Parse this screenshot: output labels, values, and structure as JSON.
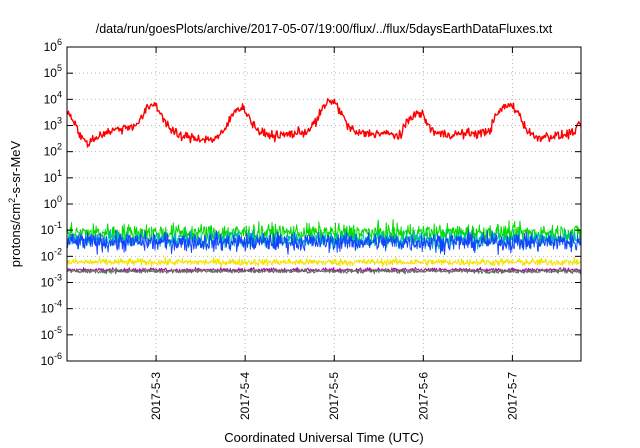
{
  "chart_data": {
    "type": "line",
    "title": "/data/run/goesPlots/archive/2017-05-07/19:00/flux/../flux/5daysEarthDataFluxes.txt",
    "xlabel": "Coordinated Universal Time (UTC)",
    "ylabel": "protons/cm²-s-sr-MeV",
    "y_scale": "log",
    "ylim": [
      1e-06,
      1000000.0
    ],
    "y_tick_exponents": [
      "-6",
      "-5",
      "-4",
      "-3",
      "-2",
      "-1",
      "0",
      "1",
      "2",
      "3",
      "4",
      "5",
      "6"
    ],
    "y_tick_base": "10",
    "x_range_days": [
      0,
      5.77
    ],
    "x_ticks": [
      {
        "day": 1,
        "label": "2017-5-3"
      },
      {
        "day": 2,
        "label": "2017-5-4"
      },
      {
        "day": 3,
        "label": "2017-5-5"
      },
      {
        "day": 4,
        "label": "2017-5-6"
      },
      {
        "day": 5,
        "label": "2017-5-7"
      }
    ],
    "grid": true,
    "series": [
      {
        "color": "#ff0000",
        "points": [
          [
            0.0,
            4000
          ],
          [
            0.08,
            1500
          ],
          [
            0.15,
            400
          ],
          [
            0.22,
            200
          ],
          [
            0.3,
            300
          ],
          [
            0.4,
            500
          ],
          [
            0.55,
            700
          ],
          [
            0.7,
            900
          ],
          [
            0.8,
            1200
          ],
          [
            0.88,
            3500
          ],
          [
            0.95,
            6500
          ],
          [
            1.0,
            6000
          ],
          [
            1.05,
            3000
          ],
          [
            1.15,
            800
          ],
          [
            1.25,
            400
          ],
          [
            1.4,
            350
          ],
          [
            1.55,
            300
          ],
          [
            1.65,
            300
          ],
          [
            1.75,
            500
          ],
          [
            1.82,
            1500
          ],
          [
            1.9,
            4500
          ],
          [
            1.95,
            5000
          ],
          [
            2.0,
            4000
          ],
          [
            2.08,
            1200
          ],
          [
            2.18,
            500
          ],
          [
            2.35,
            400
          ],
          [
            2.55,
            500
          ],
          [
            2.7,
            600
          ],
          [
            2.8,
            1500
          ],
          [
            2.88,
            5000
          ],
          [
            2.95,
            9000
          ],
          [
            3.0,
            8000
          ],
          [
            3.06,
            4000
          ],
          [
            3.15,
            1000
          ],
          [
            3.25,
            500
          ],
          [
            3.4,
            500
          ],
          [
            3.55,
            500
          ],
          [
            3.65,
            450
          ],
          [
            3.75,
            400
          ],
          [
            3.82,
            1500
          ],
          [
            3.88,
            2500
          ],
          [
            3.95,
            2800
          ],
          [
            4.0,
            2600
          ],
          [
            4.05,
            1000
          ],
          [
            4.15,
            500
          ],
          [
            4.3,
            450
          ],
          [
            4.5,
            500
          ],
          [
            4.65,
            500
          ],
          [
            4.75,
            700
          ],
          [
            4.82,
            2500
          ],
          [
            4.9,
            5000
          ],
          [
            4.98,
            6000
          ],
          [
            5.03,
            4500
          ],
          [
            5.08,
            2500
          ],
          [
            5.15,
            800
          ],
          [
            5.25,
            350
          ],
          [
            5.4,
            400
          ],
          [
            5.55,
            400
          ],
          [
            5.65,
            500
          ],
          [
            5.72,
            700
          ],
          [
            5.77,
            1200
          ]
        ],
        "noise_sd_log10": 0.09
      },
      {
        "color": "#00dd00",
        "baseline": 0.08,
        "noise_sd_log10": 0.17
      },
      {
        "color": "#00bbaa",
        "baseline": 0.045,
        "noise_sd_log10": 0.16
      },
      {
        "color": "#1144ff",
        "baseline": 0.035,
        "noise_sd_log10": 0.18
      },
      {
        "color": "#f2e400",
        "baseline": 0.006,
        "noise_sd_log10": 0.07
      },
      {
        "color": "#b000b0",
        "baseline": 0.003,
        "noise_sd_log10": 0.04
      },
      {
        "color": "#557755",
        "baseline": 0.0027,
        "noise_sd_log10": 0.04
      }
    ]
  }
}
